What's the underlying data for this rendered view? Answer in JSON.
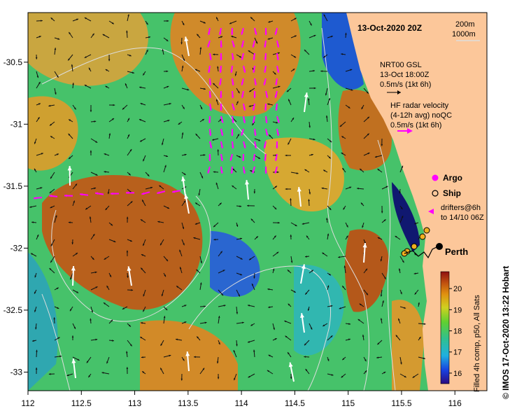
{
  "title": "13-Oct-2020 20Z",
  "depth_legend": [
    "200m",
    "1000m"
  ],
  "x_ticks": [
    "112",
    "112.5",
    "113",
    "113.5",
    "114",
    "114.5",
    "115",
    "115.5",
    "116"
  ],
  "y_ticks": [
    "-30.5",
    "-31",
    "-31.5",
    "-32",
    "-32.5",
    "-33"
  ],
  "axes": {
    "lon_range": [
      112,
      116.3
    ],
    "lat_range": [
      -30.1,
      -33.15
    ]
  },
  "nrt_legend": {
    "line1": "NRT00 GSL",
    "line2": "13-Oct 18:00Z",
    "line3": "0.5m/s (1kt 6h)"
  },
  "hf_legend": {
    "line1": "HF radar velocity",
    "line2": "(4-12h avg) noQC",
    "line3": "0.5m/s (1kt 6h)"
  },
  "argo_label": "Argo",
  "ship_label": "Ship",
  "drifters_label": {
    "line1": "drifters@6h",
    "line2": "to 14/10 06Z"
  },
  "city": {
    "name": "Perth",
    "lon": 115.86,
    "lat": -31.95
  },
  "colorbar": {
    "labels": [
      "20",
      "19",
      "18",
      "17",
      "16"
    ],
    "values": [
      20,
      19,
      18,
      17,
      16
    ],
    "range": [
      15.5,
      20.8
    ],
    "caption": "Filled 4h comp, p50, All Sats"
  },
  "credit": "© IMOS 17-Oct-2020 13:22 Hobart",
  "colors": {
    "land": "#fcc79a",
    "hf_vector": "#ff00ff",
    "drifter": "#ff00ff"
  }
}
